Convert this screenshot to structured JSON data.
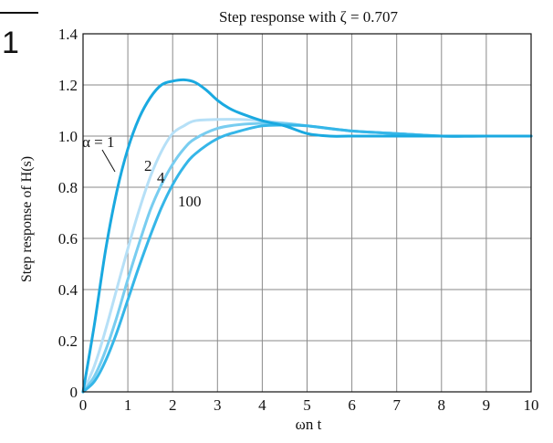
{
  "corner_label": "1",
  "chart_data": {
    "type": "line",
    "title": "Step response with ζ = 0.707",
    "xlabel": "ωn t",
    "ylabel": "Step response of H(s)",
    "xlim": [
      0,
      10
    ],
    "ylim": [
      0,
      1.4
    ],
    "xticks": [
      0,
      1,
      2,
      3,
      4,
      5,
      6,
      7,
      8,
      9,
      10
    ],
    "yticks": [
      0,
      0.2,
      0.4,
      0.6,
      0.8,
      1.0,
      1.2,
      1.4
    ],
    "ytick_labels": [
      "0",
      "0.2",
      "0.4",
      "0.6",
      "0.8",
      "1.0",
      "1.2",
      "1.4"
    ],
    "grid": true,
    "series": [
      {
        "name": "α = 1",
        "color": "#1aa9e0",
        "x": [
          0,
          0.25,
          0.5,
          0.75,
          1.0,
          1.25,
          1.5,
          1.75,
          2.0,
          2.25,
          2.5,
          2.75,
          3.0,
          3.25,
          3.5,
          4.0,
          4.5,
          5.0,
          5.5,
          6.0,
          7.0,
          8.0,
          9.0,
          10.0
        ],
        "y": [
          0,
          0.26,
          0.55,
          0.78,
          0.95,
          1.07,
          1.15,
          1.2,
          1.215,
          1.22,
          1.21,
          1.18,
          1.14,
          1.11,
          1.09,
          1.06,
          1.04,
          1.01,
          1.0,
          1.0,
          1.0,
          1.0,
          1.0,
          1.0
        ]
      },
      {
        "name": "2",
        "color": "#b6e0f7",
        "x": [
          0,
          0.25,
          0.5,
          0.75,
          1.0,
          1.25,
          1.5,
          1.75,
          2.0,
          2.25,
          2.5,
          3.0,
          3.5,
          4.0,
          4.5,
          5.0,
          6.0,
          7.0,
          8.0,
          9.0,
          10.0
        ],
        "y": [
          0,
          0.1,
          0.24,
          0.4,
          0.56,
          0.71,
          0.84,
          0.94,
          1.01,
          1.04,
          1.06,
          1.065,
          1.065,
          1.06,
          1.05,
          1.04,
          1.02,
          1.01,
          1.0,
          1.0,
          1.0
        ]
      },
      {
        "name": "4",
        "color": "#78cdf0",
        "x": [
          0,
          0.25,
          0.5,
          0.75,
          1.0,
          1.25,
          1.5,
          1.75,
          2.0,
          2.25,
          2.5,
          3.0,
          3.5,
          4.0,
          4.5,
          5.0,
          6.0,
          7.0,
          8.0,
          9.0,
          10.0
        ],
        "y": [
          0,
          0.06,
          0.16,
          0.29,
          0.44,
          0.58,
          0.71,
          0.81,
          0.89,
          0.95,
          0.99,
          1.03,
          1.045,
          1.05,
          1.05,
          1.04,
          1.02,
          1.01,
          1.0,
          1.0,
          1.0
        ]
      },
      {
        "name": "100",
        "color": "#35b6e8",
        "x": [
          0,
          0.25,
          0.5,
          0.75,
          1.0,
          1.25,
          1.5,
          1.75,
          2.0,
          2.25,
          2.5,
          3.0,
          3.5,
          4.0,
          4.5,
          5.0,
          6.0,
          7.0,
          8.0,
          9.0,
          10.0
        ],
        "y": [
          0,
          0.04,
          0.12,
          0.23,
          0.36,
          0.49,
          0.61,
          0.72,
          0.81,
          0.88,
          0.93,
          0.99,
          1.02,
          1.04,
          1.043,
          1.04,
          1.02,
          1.01,
          1.0,
          1.0,
          1.0
        ]
      }
    ],
    "annotations": [
      "α = 1",
      "2",
      "4",
      "100"
    ]
  }
}
